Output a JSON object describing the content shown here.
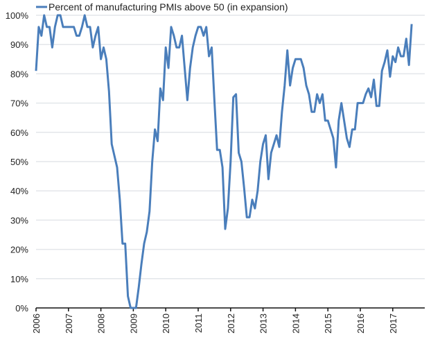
{
  "chart_data": {
    "type": "line",
    "title": "",
    "xlabel": "",
    "ylabel": "",
    "ylim": [
      0,
      100
    ],
    "y_ticks": [
      "0%",
      "10%",
      "20%",
      "30%",
      "40%",
      "50%",
      "60%",
      "70%",
      "80%",
      "90%",
      "100%"
    ],
    "x_ticks": [
      "2006",
      "2007",
      "2008",
      "2009",
      "2010",
      "2011",
      "2012",
      "2013",
      "2014",
      "2015",
      "2016",
      "2017"
    ],
    "x_start": "2006-01",
    "x_frequency": "monthly",
    "grid": true,
    "legend_position": "top-left",
    "series": [
      {
        "name": "Percent of manufacturing PMIs above 50 (in expansion)",
        "color": "#4a7ebb",
        "values": [
          81,
          96,
          93,
          100,
          96,
          96,
          89,
          96,
          100,
          100,
          96,
          96,
          96,
          96,
          96,
          93,
          93,
          96,
          100,
          96,
          96,
          89,
          93,
          96,
          85,
          89,
          85,
          74,
          56,
          52,
          48,
          37,
          22,
          22,
          4,
          0,
          0,
          0,
          7,
          15,
          22,
          26,
          33,
          50,
          61,
          57,
          75,
          71,
          89,
          82,
          96,
          93,
          89,
          89,
          93,
          82,
          71,
          82,
          89,
          93,
          96,
          96,
          93,
          96,
          86,
          89,
          71,
          54,
          54,
          48,
          27,
          34,
          50,
          72,
          73,
          53,
          50,
          41,
          31,
          31,
          37,
          34,
          40,
          50,
          56,
          59,
          44,
          53,
          56,
          59,
          55,
          67,
          76,
          88,
          76,
          82,
          85,
          85,
          85,
          82,
          76,
          73,
          67,
          67,
          73,
          70,
          73,
          64,
          64,
          61,
          58,
          48,
          64,
          70,
          64,
          58,
          55,
          61,
          61,
          70,
          70,
          70,
          73,
          75,
          72,
          78,
          69,
          69,
          81,
          84,
          88,
          79,
          86,
          84,
          89,
          86,
          86,
          92,
          83,
          97
        ]
      }
    ]
  }
}
